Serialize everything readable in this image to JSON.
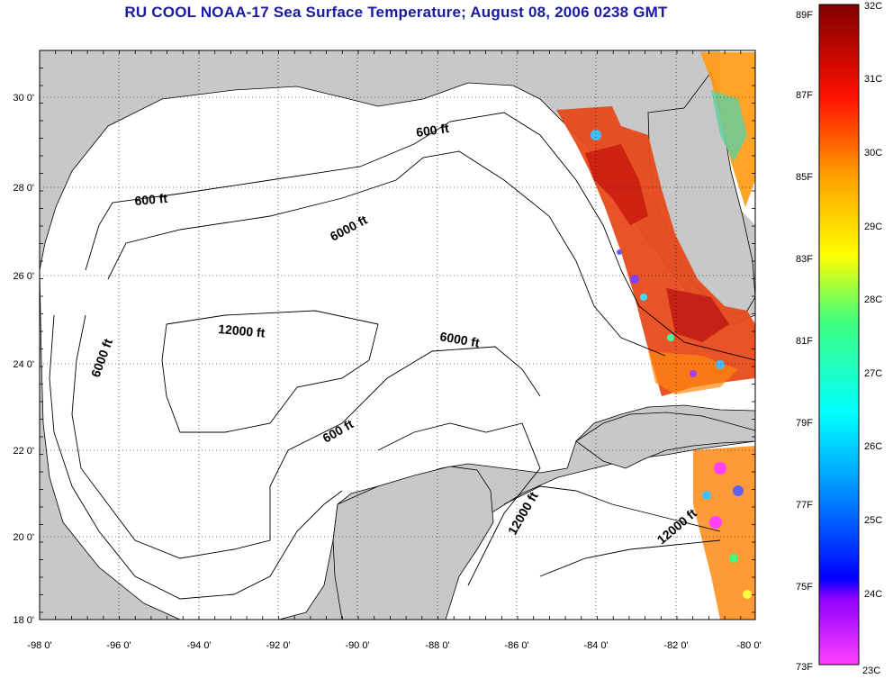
{
  "title": "RU COOL  NOAA-17  Sea Surface Temperature;  August 08, 2006 0238 GMT",
  "x_ticks": [
    "-98 0'",
    "-96 0'",
    "-94 0'",
    "-92 0'",
    "-90 0'",
    "-88 0'",
    "-86 0'",
    "-84 0'",
    "-82 0'",
    "-80 0'"
  ],
  "y_ticks": [
    "30 0'",
    "28 0'",
    "26 0'",
    "24 0'",
    "22 0'",
    "20 0'",
    "18 0'"
  ],
  "contour_labels": [
    "600 ft",
    "600 ft",
    "6000 ft",
    "12000 ft",
    "6000 ft",
    "6000 ft",
    "600 ft",
    "12000 ft",
    "12000 ft"
  ],
  "colorbar": {
    "fahrenheit": [
      "89F",
      "87F",
      "85F",
      "83F",
      "81F",
      "79F",
      "77F",
      "75F",
      "73F"
    ],
    "celsius": [
      "32C",
      "31C",
      "30C",
      "29C",
      "28C",
      "27C",
      "26C",
      "25C",
      "24C",
      "23C"
    ]
  },
  "colors": {
    "land": "#c8c8c8",
    "ocean_nodata": "#ffffff",
    "title": "#1a1aa0",
    "sst_warm": "#e8441a",
    "sst_hot": "#c81410"
  }
}
